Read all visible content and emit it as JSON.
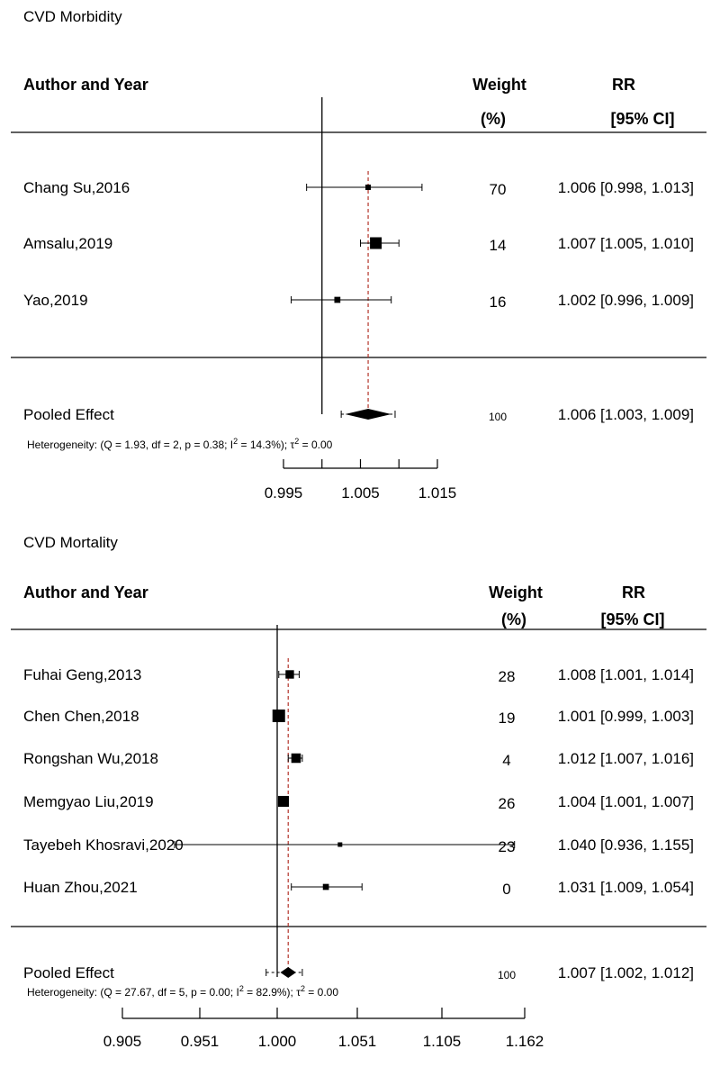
{
  "colors": {
    "ref_line": "#000000",
    "pooled_line": "#b5352b",
    "marker": "#000000",
    "background": "#ffffff"
  },
  "chart_data": [
    {
      "type": "forest",
      "title": "CVD Morbidity",
      "headers": {
        "study": "Author and Year",
        "weight": "Weight",
        "weight_unit": "(%)",
        "effect": "RR",
        "ci": "[95% CI]"
      },
      "null_value": 1.0,
      "axis_ticks": [
        0.995,
        1.0,
        1.005,
        1.01,
        1.015
      ],
      "axis_tick_labels": [
        "0.995",
        "",
        "1.005",
        "",
        "1.015"
      ],
      "xlim": [
        0.995,
        1.015
      ],
      "studies": [
        {
          "label": "Chang Su,2016",
          "weight": "70",
          "estimate": 1.006,
          "lower": 0.998,
          "upper": 1.013,
          "text": "1.006 [0.998, 1.013]"
        },
        {
          "label": "Amsalu,2019",
          "weight": "14",
          "estimate": 1.007,
          "lower": 1.005,
          "upper": 1.01,
          "text": "1.007 [1.005, 1.010]"
        },
        {
          "label": "Yao,2019",
          "weight": "16",
          "estimate": 1.002,
          "lower": 0.996,
          "upper": 1.009,
          "text": "1.002 [0.996, 1.009]"
        }
      ],
      "pooled": {
        "label": "Pooled Effect",
        "weight": "100",
        "estimate": 1.006,
        "lower": 1.003,
        "upper": 1.009,
        "text": "1.006 [1.003, 1.009]",
        "pi_lower": 1.0025,
        "pi_upper": 1.0095
      },
      "heterogeneity": {
        "prefix": "Heterogeneity: (Q = 1.93, df = 2, p = 0.38; I",
        "i2_value": " = 14.3%); τ",
        "tau_value": " = 0.00",
        "sup": "2"
      }
    },
    {
      "type": "forest",
      "title": "CVD Mortality",
      "headers": {
        "study": "Author and Year",
        "weight": "Weight",
        "weight_unit": "(%)",
        "effect": "RR",
        "ci": "[95% CI]"
      },
      "null_value": 1.0,
      "axis_ticks": [
        0.905,
        0.951,
        1.0,
        1.051,
        1.105,
        1.162
      ],
      "axis_tick_labels": [
        "0.905",
        "0.951",
        "1.000",
        "1.051",
        "1.105",
        "1.162"
      ],
      "xlim": [
        0.905,
        1.162
      ],
      "studies": [
        {
          "label": "Fuhai Geng,2013",
          "weight": "28",
          "estimate": 1.008,
          "lower": 1.001,
          "upper": 1.014,
          "text": "1.008 [1.001, 1.014]"
        },
        {
          "label": "Chen Chen,2018",
          "weight": "19",
          "estimate": 1.001,
          "lower": 0.999,
          "upper": 1.003,
          "text": "1.001 [0.999, 1.003]"
        },
        {
          "label": "Rongshan Wu,2018",
          "weight": "4",
          "estimate": 1.012,
          "lower": 1.007,
          "upper": 1.016,
          "text": "1.012 [1.007, 1.016]"
        },
        {
          "label": "Memgyao Liu,2019",
          "weight": "26",
          "estimate": 1.004,
          "lower": 1.001,
          "upper": 1.007,
          "text": "1.004 [1.001, 1.007]"
        },
        {
          "label": "Tayebeh Khosravi,2020",
          "weight": "23",
          "estimate": 1.04,
          "lower": 0.936,
          "upper": 1.155,
          "text": "1.040 [0.936, 1.155]"
        },
        {
          "label": "Huan Zhou,2021",
          "weight": "0",
          "estimate": 1.031,
          "lower": 1.009,
          "upper": 1.054,
          "text": "1.031 [1.009, 1.054]"
        }
      ],
      "pooled": {
        "label": "Pooled Effect",
        "weight": "100",
        "estimate": 1.007,
        "lower": 1.002,
        "upper": 1.012,
        "text": "1.007 [1.002, 1.012]",
        "pi_lower": 0.993,
        "pi_upper": 1.016
      },
      "heterogeneity": {
        "prefix": "Heterogeneity: (Q = 27.67, df = 5, p = 0.00; I",
        "i2_value": " = 82.9%); τ",
        "tau_value": " = 0.00",
        "sup": "2"
      }
    }
  ]
}
